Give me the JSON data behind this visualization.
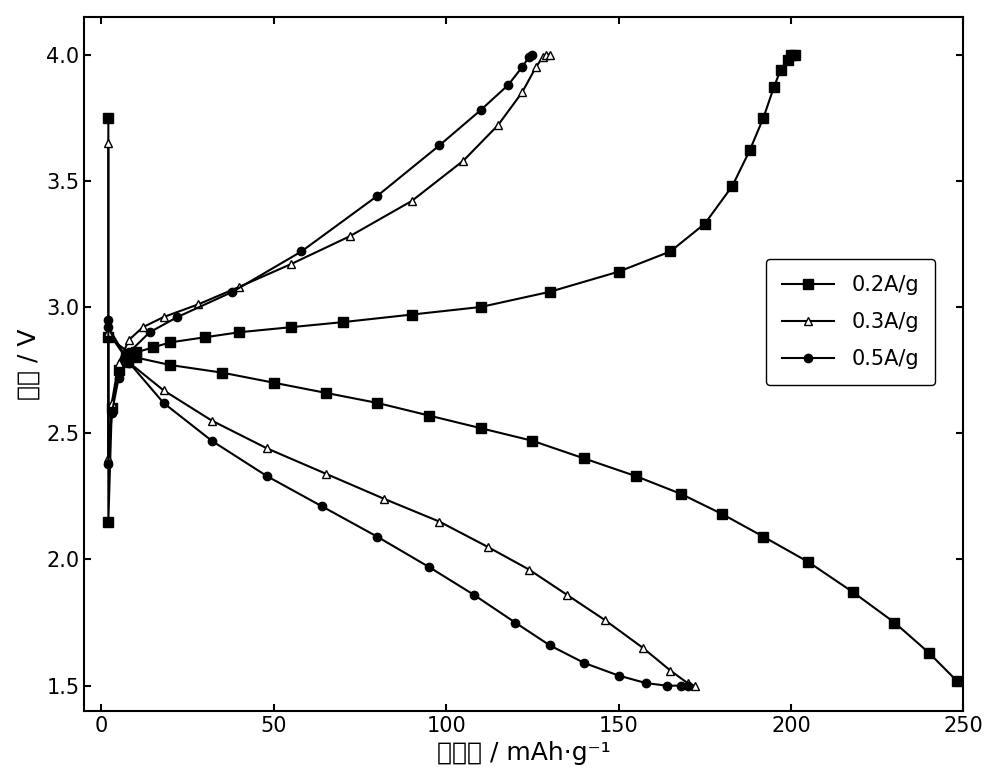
{
  "xlabel": "比容量 / mAh·g⁻¹",
  "ylabel": "电压 / V",
  "xlim": [
    -5,
    250
  ],
  "ylim": [
    1.4,
    4.15
  ],
  "xticks": [
    0,
    50,
    100,
    150,
    200,
    250
  ],
  "yticks": [
    1.5,
    2.0,
    2.5,
    3.0,
    3.5,
    4.0
  ],
  "background_color": "#ffffff",
  "series_02_charge_x": [
    2,
    2,
    3,
    5,
    7,
    10,
    15,
    20,
    30,
    40,
    55,
    70,
    90,
    110,
    130,
    150,
    165,
    175,
    183,
    188,
    192,
    195,
    197,
    199,
    200,
    201
  ],
  "series_02_charge_y": [
    3.75,
    2.15,
    2.6,
    2.75,
    2.8,
    2.82,
    2.84,
    2.86,
    2.88,
    2.9,
    2.92,
    2.94,
    2.97,
    3.0,
    3.06,
    3.14,
    3.22,
    3.33,
    3.48,
    3.62,
    3.75,
    3.87,
    3.94,
    3.98,
    4.0,
    4.0
  ],
  "series_02_discharge_x": [
    2,
    10,
    20,
    35,
    50,
    65,
    80,
    95,
    110,
    125,
    140,
    155,
    168,
    180,
    192,
    205,
    218,
    230,
    240,
    248
  ],
  "series_02_discharge_y": [
    2.88,
    2.8,
    2.77,
    2.74,
    2.7,
    2.66,
    2.62,
    2.57,
    2.52,
    2.47,
    2.4,
    2.33,
    2.26,
    2.18,
    2.09,
    1.99,
    1.87,
    1.75,
    1.63,
    1.52
  ],
  "series_03_charge_x": [
    2,
    2,
    3,
    5,
    8,
    12,
    18,
    28,
    40,
    55,
    72,
    90,
    105,
    115,
    122,
    126,
    128,
    129,
    130
  ],
  "series_03_charge_y": [
    3.65,
    2.4,
    2.62,
    2.78,
    2.87,
    2.92,
    2.96,
    3.01,
    3.08,
    3.17,
    3.28,
    3.42,
    3.58,
    3.72,
    3.85,
    3.95,
    3.99,
    4.0,
    4.0
  ],
  "series_03_discharge_x": [
    2,
    8,
    18,
    32,
    48,
    65,
    82,
    98,
    112,
    124,
    135,
    146,
    157,
    165,
    170,
    172
  ],
  "series_03_discharge_y": [
    2.9,
    2.78,
    2.67,
    2.55,
    2.44,
    2.34,
    2.24,
    2.15,
    2.05,
    1.96,
    1.86,
    1.76,
    1.65,
    1.56,
    1.51,
    1.5
  ],
  "series_05_charge_x": [
    2,
    2,
    3,
    5,
    8,
    14,
    22,
    38,
    58,
    80,
    98,
    110,
    118,
    122,
    124,
    125
  ],
  "series_05_charge_y": [
    2.95,
    2.38,
    2.58,
    2.72,
    2.82,
    2.9,
    2.96,
    3.06,
    3.22,
    3.44,
    3.64,
    3.78,
    3.88,
    3.95,
    3.99,
    4.0
  ],
  "series_05_discharge_x": [
    2,
    8,
    18,
    32,
    48,
    64,
    80,
    95,
    108,
    120,
    130,
    140,
    150,
    158,
    164,
    168,
    170
  ],
  "series_05_discharge_y": [
    2.92,
    2.78,
    2.62,
    2.47,
    2.33,
    2.21,
    2.09,
    1.97,
    1.86,
    1.75,
    1.66,
    1.59,
    1.54,
    1.51,
    1.5,
    1.5,
    1.5
  ],
  "legend_labels": [
    "0.2A/g",
    "0.3A/g",
    "0.5A/g"
  ],
  "marker_size": 6,
  "marker_size_02": 7,
  "linewidth": 1.5,
  "font_size_label": 18,
  "font_size_tick": 15,
  "font_size_legend": 15
}
